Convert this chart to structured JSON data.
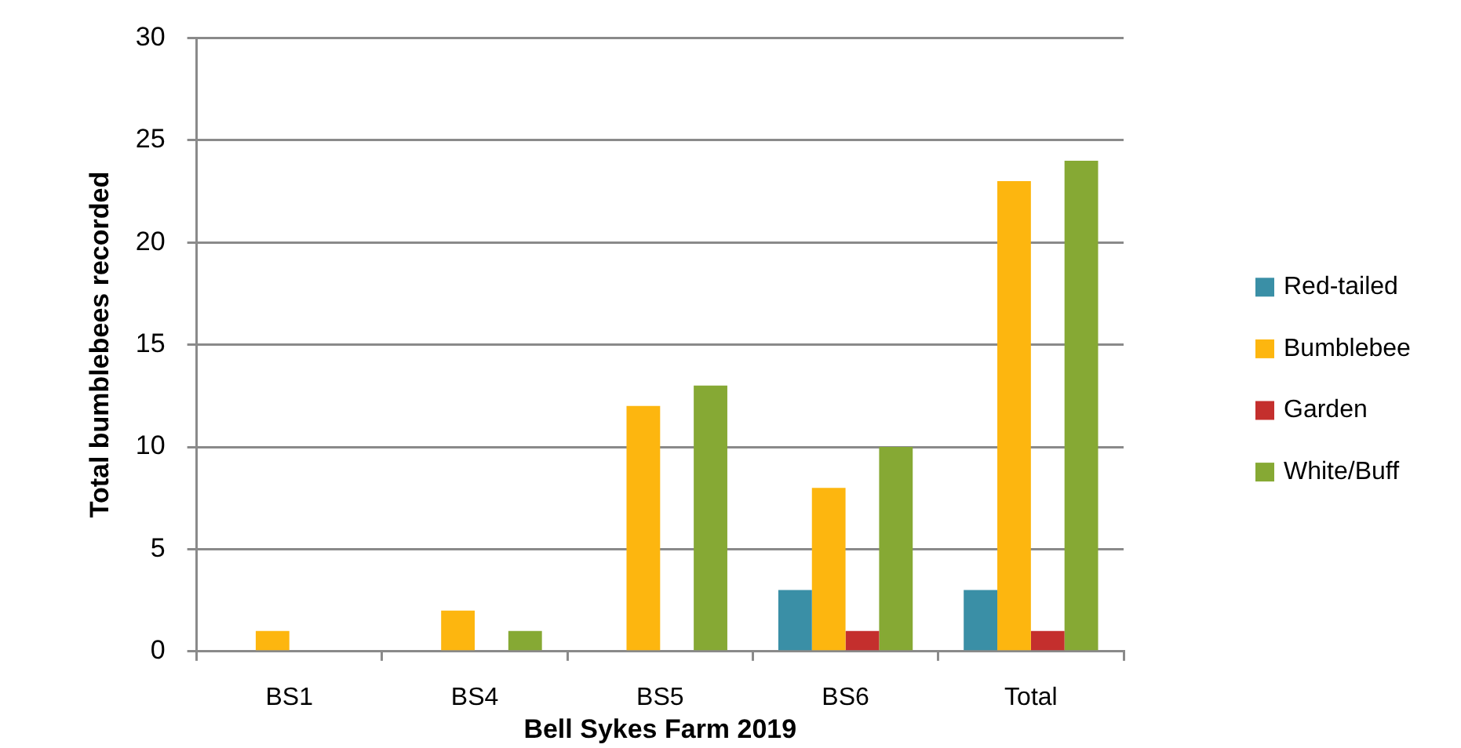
{
  "chart_data": {
    "type": "bar",
    "categories": [
      "BS1",
      "BS4",
      "BS5",
      "BS6",
      "Total"
    ],
    "series": [
      {
        "name": "Red-tailed",
        "color": "#3a8fa6",
        "values": [
          0,
          0,
          0,
          3,
          3
        ]
      },
      {
        "name": "Bumblebee",
        "color": "#fdb60f",
        "values": [
          1,
          2,
          12,
          8,
          23
        ]
      },
      {
        "name": "Garden",
        "color": "#c42f2d",
        "values": [
          0,
          0,
          0,
          1,
          1
        ]
      },
      {
        "name": "White/Buff",
        "color": "#86a934",
        "values": [
          0,
          1,
          13,
          10,
          24
        ]
      }
    ],
    "xlabel": "Bell Sykes Farm 2019",
    "ylabel": "Total bumblebees recorded",
    "ylim": [
      0,
      30
    ],
    "yticks": [
      0,
      5,
      10,
      15,
      20,
      25,
      30
    ],
    "grid": "y",
    "legend": "right"
  }
}
